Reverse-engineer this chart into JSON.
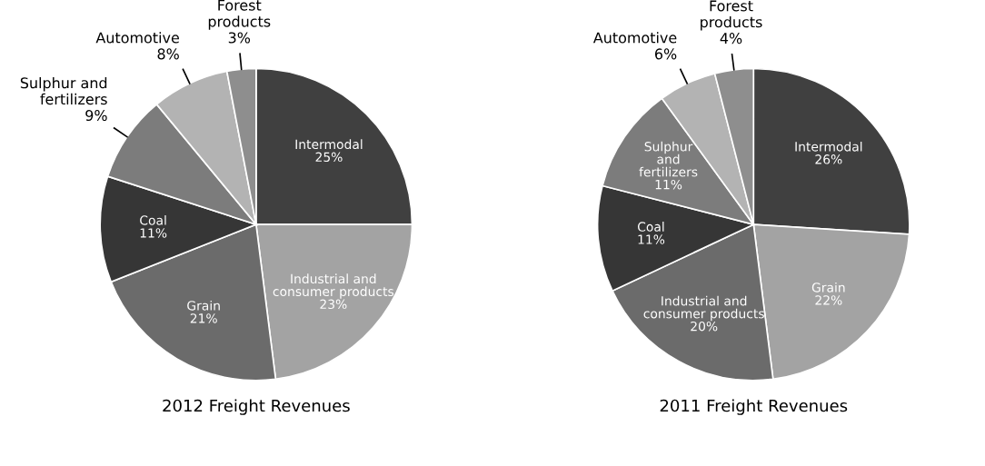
{
  "chart_data": [
    {
      "type": "pie",
      "title": "2012 Freight Revenues",
      "categories": [
        "Intermodal",
        "Industrial and\nconsumer products",
        "Grain",
        "Coal",
        "Sulphur and\nfertilizers",
        "Automotive",
        "Forest\nproducts"
      ],
      "values": [
        25,
        23,
        21,
        11,
        9,
        8,
        3
      ],
      "value_labels": [
        "25%",
        "23%",
        "21%",
        "11%",
        "9%",
        "8%",
        "3%"
      ],
      "colors": [
        "#404040",
        "#a3a3a3",
        "#6b6b6b",
        "#363636",
        "#7c7c7c",
        "#b3b3b3",
        "#8e8e8e"
      ]
    },
    {
      "type": "pie",
      "title": "2011 Freight Revenues",
      "categories": [
        "Intermodal",
        "Grain",
        "Industrial and\nconsumer products",
        "Coal",
        "Sulphur\nand\nfertilizers",
        "Automotive",
        "Forest\nproducts"
      ],
      "values": [
        26,
        22,
        20,
        11,
        11,
        6,
        4
      ],
      "value_labels": [
        "26%",
        "22%",
        "20%",
        "11%",
        "11%",
        "6%",
        "4%"
      ],
      "colors": [
        "#404040",
        "#a3a3a3",
        "#6b6b6b",
        "#363636",
        "#7c7c7c",
        "#b3b3b3",
        "#8e8e8e"
      ]
    }
  ]
}
